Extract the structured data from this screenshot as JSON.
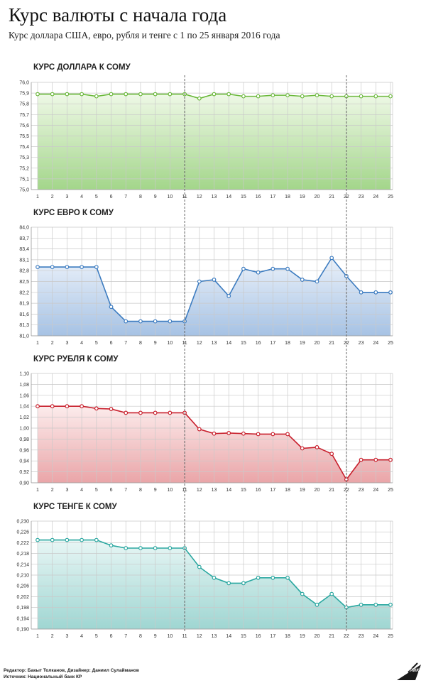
{
  "header": {
    "title": "Курс валюты с начала года",
    "subtitle": "Курс доллара США, евро, рубля и тенге с 1 по 25 января 2016 года"
  },
  "footer": {
    "credits_line1": "Редактор: Бакыт Толканов, Дизайнер: Даниил Сулайманов",
    "credits_line2": "Источник: Национальный банк КР",
    "logo_text": "SPUTNIK"
  },
  "chart_data": [
    {
      "type": "area",
      "title": "КУРС ДОЛЛАРА К СОМУ",
      "color": "#6ab83a",
      "fill_top": "#eef8e6",
      "fill_bottom": "#a3d68a",
      "x": [
        1,
        2,
        3,
        4,
        5,
        6,
        7,
        8,
        9,
        10,
        11,
        12,
        13,
        14,
        15,
        16,
        17,
        18,
        19,
        20,
        21,
        22,
        23,
        24,
        25
      ],
      "x_tick_labels": [
        "1",
        "2",
        "3",
        "4",
        "5",
        "6",
        "7",
        "8",
        "9",
        "10",
        "11",
        "12",
        "13",
        "14",
        "15",
        "16",
        "17",
        "18",
        "19",
        "20",
        "21",
        "22",
        "23",
        "24",
        "25"
      ],
      "values": [
        75.89,
        75.89,
        75.89,
        75.89,
        75.87,
        75.89,
        75.89,
        75.89,
        75.89,
        75.89,
        75.89,
        75.85,
        75.89,
        75.89,
        75.87,
        75.87,
        75.88,
        75.88,
        75.87,
        75.88,
        75.87,
        75.87,
        75.87,
        75.87,
        75.87
      ],
      "ylim": [
        75.0,
        76.0
      ],
      "y_tick_labels": [
        "75,0",
        "75,1",
        "75,2",
        "75,3",
        "75,4",
        "75,5",
        "75,6",
        "75,7",
        "75,8",
        "75,9",
        "76,0"
      ],
      "y_ticks": [
        75.0,
        75.1,
        75.2,
        75.3,
        75.4,
        75.5,
        75.6,
        75.7,
        75.8,
        75.9,
        76.0
      ],
      "markers": [
        11,
        22
      ],
      "grid": true
    },
    {
      "type": "area",
      "title": "КУРС ЕВРО К СОМУ",
      "color": "#3d7cc0",
      "fill_top": "#eaf1fa",
      "fill_bottom": "#a6c2e4",
      "x": [
        1,
        2,
        3,
        4,
        5,
        6,
        7,
        8,
        9,
        10,
        11,
        12,
        13,
        14,
        15,
        16,
        17,
        18,
        19,
        20,
        21,
        22,
        23,
        24,
        25
      ],
      "x_tick_labels": [
        "1",
        "2",
        "3",
        "4",
        "5",
        "6",
        "7",
        "8",
        "9",
        "10",
        "11",
        "12",
        "13",
        "14",
        "15",
        "16",
        "17",
        "18",
        "19",
        "20",
        "21",
        "22",
        "23",
        "24",
        "25"
      ],
      "values": [
        82.9,
        82.9,
        82.9,
        82.9,
        82.9,
        81.8,
        81.4,
        81.4,
        81.4,
        81.4,
        81.4,
        82.5,
        82.55,
        82.1,
        82.85,
        82.75,
        82.85,
        82.85,
        82.55,
        82.5,
        83.15,
        82.65,
        82.2,
        82.2,
        82.2
      ],
      "ylim": [
        81.0,
        84.0
      ],
      "y_tick_labels": [
        "81,0",
        "81,3",
        "81,6",
        "81,9",
        "82,2",
        "82,5",
        "82,8",
        "83,1",
        "83,4",
        "83,7",
        "84,0"
      ],
      "y_ticks": [
        81.0,
        81.3,
        81.6,
        81.9,
        82.2,
        82.5,
        82.8,
        83.1,
        83.4,
        83.7,
        84.0
      ],
      "markers": [
        11,
        22
      ],
      "grid": true
    },
    {
      "type": "area",
      "title": "КУРС РУБЛЯ К СОМУ",
      "color": "#c8202d",
      "fill_top": "#fcecec",
      "fill_bottom": "#eaa5a8",
      "x": [
        1,
        2,
        3,
        4,
        5,
        6,
        7,
        8,
        9,
        10,
        11,
        12,
        13,
        14,
        15,
        16,
        17,
        18,
        19,
        20,
        21,
        22,
        23,
        24,
        25
      ],
      "x_tick_labels": [
        "1",
        "2",
        "3",
        "4",
        "5",
        "6",
        "7",
        "8",
        "9",
        "10",
        "11",
        "12",
        "13",
        "14",
        "15",
        "16",
        "17",
        "18",
        "19",
        "20",
        "21",
        "22",
        "23",
        "24",
        "25"
      ],
      "values": [
        1.04,
        1.04,
        1.04,
        1.04,
        1.036,
        1.035,
        1.028,
        1.028,
        1.028,
        1.028,
        1.028,
        0.998,
        0.99,
        0.991,
        0.99,
        0.989,
        0.989,
        0.989,
        0.963,
        0.965,
        0.953,
        0.906,
        0.942,
        0.942,
        0.942
      ],
      "ylim": [
        0.9,
        1.1
      ],
      "y_tick_labels": [
        "0,90",
        "0,92",
        "0,94",
        "0,96",
        "0,98",
        "1,00",
        "1,02",
        "1,04",
        "1,06",
        "1,08",
        "1,10"
      ],
      "y_ticks": [
        0.9,
        0.92,
        0.94,
        0.96,
        0.98,
        1.0,
        1.02,
        1.04,
        1.06,
        1.08,
        1.1
      ],
      "markers": [
        11,
        22
      ],
      "grid": true
    },
    {
      "type": "area",
      "title": "КУРС ТЕНГЕ К СОМУ",
      "color": "#2aa7a0",
      "fill_top": "#e8f6f5",
      "fill_bottom": "#9fd6d2",
      "x": [
        1,
        2,
        3,
        4,
        5,
        6,
        7,
        8,
        9,
        10,
        11,
        12,
        13,
        14,
        15,
        16,
        17,
        18,
        19,
        20,
        21,
        22,
        23,
        24,
        25
      ],
      "x_tick_labels": [
        "1",
        "2",
        "3",
        "4",
        "5",
        "6",
        "7",
        "8",
        "9",
        "10",
        "11",
        "12",
        "13",
        "14",
        "15",
        "16",
        "17",
        "18",
        "19",
        "20",
        "21",
        "22",
        "23",
        "24",
        "25"
      ],
      "values": [
        0.223,
        0.223,
        0.223,
        0.223,
        0.223,
        0.221,
        0.22,
        0.22,
        0.22,
        0.22,
        0.22,
        0.213,
        0.209,
        0.207,
        0.207,
        0.209,
        0.209,
        0.209,
        0.203,
        0.199,
        0.203,
        0.198,
        0.199,
        0.199,
        0.199
      ],
      "ylim": [
        0.19,
        0.23
      ],
      "y_tick_labels": [
        "0,190",
        "0,194",
        "0,198",
        "0,202",
        "0,206",
        "0,210",
        "0,214",
        "0,218",
        "0,222",
        "0,226",
        "0,230"
      ],
      "y_ticks": [
        0.19,
        0.194,
        0.198,
        0.202,
        0.206,
        0.21,
        0.214,
        0.218,
        0.222,
        0.226,
        0.23
      ],
      "markers": [
        11,
        22
      ],
      "grid": true
    }
  ]
}
